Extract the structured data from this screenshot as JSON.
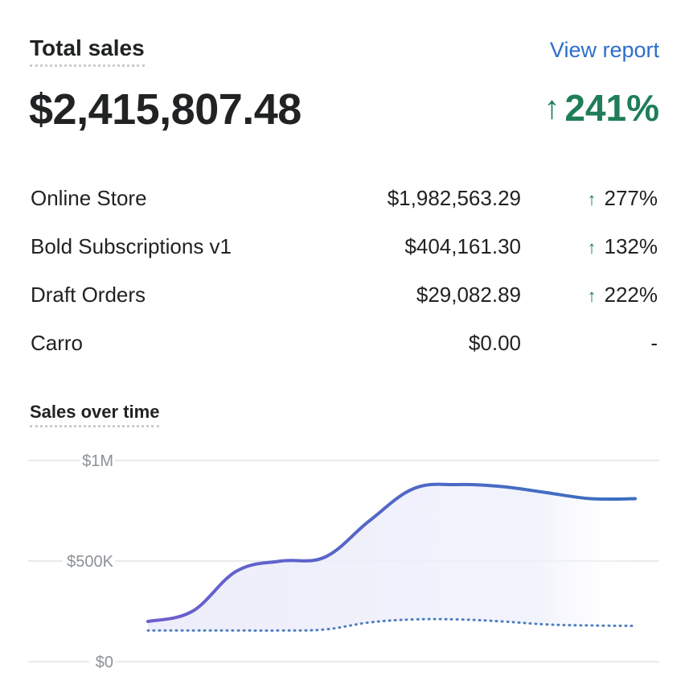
{
  "header": {
    "title": "Total sales",
    "view_report_label": "View report",
    "total_value": "$2,415,807.48",
    "total_change": "241%",
    "total_change_direction": "up"
  },
  "channels": [
    {
      "label": "Online Store",
      "amount": "$1,982,563.29",
      "change": "277%",
      "direction": "up"
    },
    {
      "label": "Bold Subscriptions v1",
      "amount": "$404,161.30",
      "change": "132%",
      "direction": "up"
    },
    {
      "label": "Draft Orders",
      "amount": "$29,082.89",
      "change": "222%",
      "direction": "up"
    },
    {
      "label": "Carro",
      "amount": "$0.00",
      "change": "-",
      "direction": "none"
    }
  ],
  "chart_title": "Sales over time",
  "colors": {
    "positive": "#1f7e58",
    "link": "#2c6ecb",
    "current_line_start": "#6b5fcf",
    "current_line_end": "#3a6fbf",
    "comparison_line": "#4f7fbf",
    "grid": "#e1e3e5",
    "axis_text": "#8c9196"
  },
  "chart_data": {
    "type": "line",
    "title": "Sales over time",
    "xlabel": "",
    "ylabel": "",
    "ylim": [
      0,
      1000000
    ],
    "y_ticks": [
      {
        "value": 1000000,
        "label": "$1M"
      },
      {
        "value": 500000,
        "label": "$500K"
      },
      {
        "value": 0,
        "label": "$0"
      }
    ],
    "x": [
      0,
      1,
      2,
      3,
      4,
      5,
      6,
      7,
      8,
      9,
      10,
      11
    ],
    "series": [
      {
        "style": "solid",
        "values": [
          200000,
          250000,
          450000,
          500000,
          520000,
          700000,
          860000,
          880000,
          870000,
          840000,
          810000,
          810000
        ]
      },
      {
        "style": "dotted",
        "values": [
          155000,
          155000,
          155000,
          155000,
          160000,
          195000,
          210000,
          210000,
          200000,
          185000,
          180000,
          178000
        ]
      }
    ],
    "grid": true,
    "legend": "none"
  }
}
